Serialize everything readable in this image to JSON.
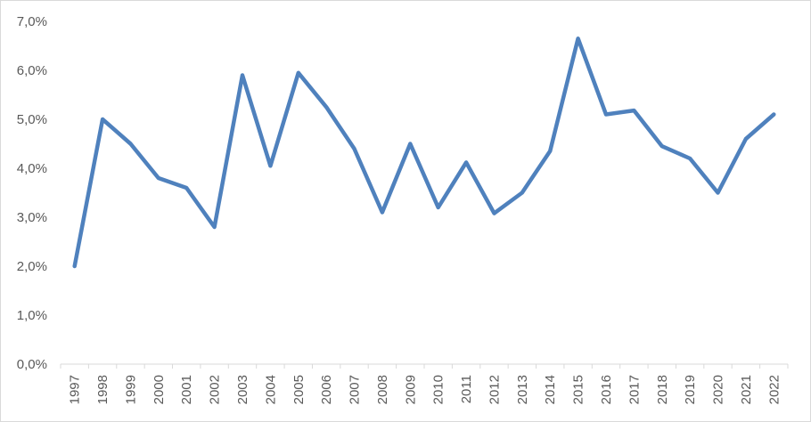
{
  "chart_data": {
    "type": "line",
    "title": "",
    "xlabel": "",
    "ylabel": "",
    "x": [
      "1997",
      "1998",
      "1999",
      "2000",
      "2001",
      "2002",
      "2003",
      "2004",
      "2005",
      "2006",
      "2007",
      "2008",
      "2009",
      "2010",
      "2011",
      "2012",
      "2013",
      "2014",
      "2015",
      "2016",
      "2017",
      "2018",
      "2019",
      "2020",
      "2021",
      "2022"
    ],
    "series": [
      {
        "values": [
          2.0,
          5.0,
          4.5,
          3.8,
          3.6,
          2.8,
          5.9,
          4.05,
          5.95,
          5.25,
          4.4,
          3.1,
          4.5,
          3.2,
          4.12,
          3.08,
          3.5,
          4.35,
          6.65,
          5.1,
          5.18,
          4.45,
          4.2,
          3.5,
          4.6,
          5.1
        ],
        "color": "#4f81bd"
      }
    ],
    "ylim": [
      0,
      7
    ],
    "y_ticks": [
      0,
      1,
      2,
      3,
      4,
      5,
      6,
      7
    ],
    "y_tick_labels": [
      "0,0%",
      "1,0%",
      "2,0%",
      "3,0%",
      "4,0%",
      "5,0%",
      "6,0%",
      "7,0%"
    ],
    "grid": false,
    "legend": "none",
    "axis_color": "#d9d9d9"
  }
}
